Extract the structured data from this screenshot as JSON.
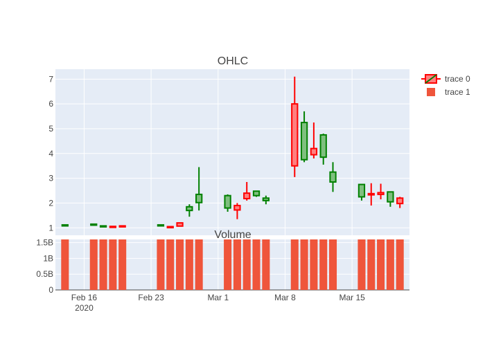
{
  "chart_data": [
    {
      "type": "candlestick",
      "title": "OHLC",
      "xlabel": "",
      "ylabel": "",
      "ylim": [
        0.7,
        7.4
      ],
      "y_ticks": [
        "1",
        "2",
        "3",
        "4",
        "5",
        "6",
        "7"
      ],
      "y_tick_values": [
        1,
        2,
        3,
        4,
        5,
        6,
        7
      ],
      "grid": true,
      "series": [
        {
          "name": "trace 0",
          "increasing_color": "#008000",
          "increasing_fill": "#7fbf7f",
          "decreasing_color": "#ff0000",
          "decreasing_fill": "#ff7f7f",
          "points": [
            {
              "date": "2020-02-14",
              "open": 1.08,
              "high": 1.13,
              "low": 1.08,
              "close": 1.12
            },
            {
              "date": "2020-02-17",
              "open": 1.12,
              "high": 1.16,
              "low": 1.11,
              "close": 1.15
            },
            {
              "date": "2020-02-18",
              "open": 1.05,
              "high": 1.09,
              "low": 1.04,
              "close": 1.08
            },
            {
              "date": "2020-02-19",
              "open": 1.06,
              "high": 1.07,
              "low": 1.02,
              "close": 1.03
            },
            {
              "date": "2020-02-20",
              "open": 1.08,
              "high": 1.09,
              "low": 1.04,
              "close": 1.05
            },
            {
              "date": "2020-02-24",
              "open": 1.08,
              "high": 1.13,
              "low": 1.08,
              "close": 1.12
            },
            {
              "date": "2020-02-25",
              "open": 1.05,
              "high": 1.06,
              "low": 1.02,
              "close": 1.03
            },
            {
              "date": "2020-02-26",
              "open": 1.2,
              "high": 1.22,
              "low": 1.05,
              "close": 1.07
            },
            {
              "date": "2020-02-27",
              "open": 1.7,
              "high": 1.95,
              "low": 1.45,
              "close": 1.85
            },
            {
              "date": "2020-02-28",
              "open": 2.02,
              "high": 3.45,
              "low": 1.7,
              "close": 2.35
            },
            {
              "date": "2020-03-02",
              "open": 1.8,
              "high": 2.35,
              "low": 1.65,
              "close": 2.3
            },
            {
              "date": "2020-03-03",
              "open": 1.9,
              "high": 2.0,
              "low": 1.35,
              "close": 1.72
            },
            {
              "date": "2020-03-04",
              "open": 2.4,
              "high": 2.85,
              "low": 2.1,
              "close": 2.18
            },
            {
              "date": "2020-03-05",
              "open": 2.3,
              "high": 2.5,
              "low": 2.25,
              "close": 2.48
            },
            {
              "date": "2020-03-06",
              "open": 2.1,
              "high": 2.3,
              "low": 1.95,
              "close": 2.2
            },
            {
              "date": "2020-03-09",
              "open": 6.0,
              "high": 7.1,
              "low": 3.05,
              "close": 3.5
            },
            {
              "date": "2020-03-10",
              "open": 3.75,
              "high": 5.7,
              "low": 3.65,
              "close": 5.25
            },
            {
              "date": "2020-03-11",
              "open": 4.2,
              "high": 5.25,
              "low": 3.8,
              "close": 3.95
            },
            {
              "date": "2020-03-12",
              "open": 3.85,
              "high": 4.8,
              "low": 3.55,
              "close": 4.75
            },
            {
              "date": "2020-03-13",
              "open": 2.85,
              "high": 3.65,
              "low": 2.45,
              "close": 3.25
            },
            {
              "date": "2020-03-16",
              "open": 2.25,
              "high": 2.75,
              "low": 2.1,
              "close": 2.75
            },
            {
              "date": "2020-03-17",
              "open": 2.38,
              "high": 2.8,
              "low": 1.9,
              "close": 2.33
            },
            {
              "date": "2020-03-18",
              "open": 2.42,
              "high": 2.78,
              "low": 2.15,
              "close": 2.35
            },
            {
              "date": "2020-03-19",
              "open": 2.05,
              "high": 2.45,
              "low": 1.85,
              "close": 2.45
            },
            {
              "date": "2020-03-20",
              "open": 2.2,
              "high": 2.25,
              "low": 1.8,
              "close": 1.98
            }
          ]
        }
      ]
    },
    {
      "type": "bar",
      "title": "Volume",
      "xlabel": "",
      "ylabel": "",
      "ylim": [
        0,
        1.6
      ],
      "y_ticks": [
        "0",
        "0.5B",
        "1B",
        "1.5B"
      ],
      "y_tick_values": [
        0,
        0.5,
        1.0,
        1.5
      ],
      "x_ticks": [
        "Feb 16",
        "Feb 23",
        "Mar 1",
        "Mar 8",
        "Mar 15"
      ],
      "x_tick_dates": [
        "2020-02-16",
        "2020-02-23",
        "2020-03-01",
        "2020-03-08",
        "2020-03-15"
      ],
      "x_year_label": "2020",
      "x_range": [
        "2020-02-13",
        "2020-03-21"
      ],
      "series": [
        {
          "name": "trace 1",
          "color": "#ef553b",
          "dates": [
            "2020-02-14",
            "2020-02-17",
            "2020-02-18",
            "2020-02-19",
            "2020-02-20",
            "2020-02-24",
            "2020-02-25",
            "2020-02-26",
            "2020-02-27",
            "2020-02-28",
            "2020-03-02",
            "2020-03-03",
            "2020-03-04",
            "2020-03-05",
            "2020-03-06",
            "2020-03-09",
            "2020-03-10",
            "2020-03-11",
            "2020-03-12",
            "2020-03-13",
            "2020-03-16",
            "2020-03-17",
            "2020-03-18",
            "2020-03-19",
            "2020-03-20"
          ],
          "values": [
            1.6,
            1.6,
            1.6,
            1.6,
            1.6,
            1.6,
            1.6,
            1.6,
            1.6,
            1.6,
            1.6,
            1.6,
            1.6,
            1.6,
            1.6,
            1.6,
            1.6,
            1.6,
            1.6,
            1.6,
            1.6,
            1.6,
            1.6,
            1.6,
            1.6
          ]
        }
      ]
    }
  ],
  "legend": {
    "placement": "top-right",
    "items": [
      {
        "label": "trace 0",
        "symbol": "candlestick"
      },
      {
        "label": "trace 1",
        "symbol": "bar",
        "color": "#ef553b"
      }
    ]
  },
  "colors": {
    "plot_bg": "#e5ecf6",
    "grid": "#ffffff",
    "volume": "#ef553b"
  }
}
